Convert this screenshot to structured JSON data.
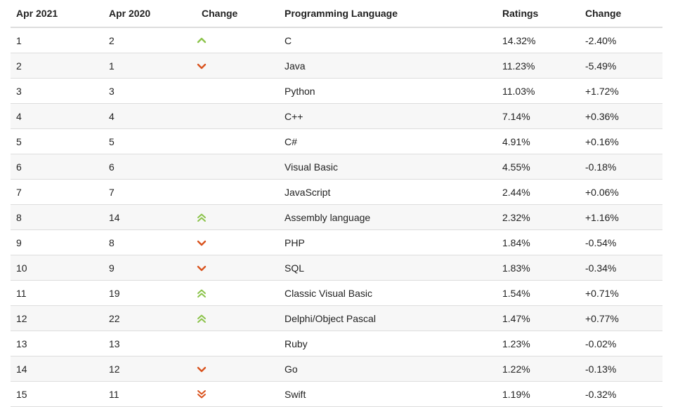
{
  "headers": [
    "Apr 2021",
    "Apr 2020",
    "Change",
    "Programming Language",
    "Ratings",
    "Change"
  ],
  "colors": {
    "up": "#8bc34a",
    "down": "#d9531e",
    "stripe": "#f7f7f7",
    "border": "#dddddd"
  },
  "rows": [
    {
      "rank2021": "1",
      "rank2020": "2",
      "trend": "up",
      "language": "C",
      "rating": "14.32%",
      "change": "-2.40%"
    },
    {
      "rank2021": "2",
      "rank2020": "1",
      "trend": "down",
      "language": "Java",
      "rating": "11.23%",
      "change": "-5.49%"
    },
    {
      "rank2021": "3",
      "rank2020": "3",
      "trend": "none",
      "language": "Python",
      "rating": "11.03%",
      "change": "+1.72%"
    },
    {
      "rank2021": "4",
      "rank2020": "4",
      "trend": "none",
      "language": "C++",
      "rating": "7.14%",
      "change": "+0.36%"
    },
    {
      "rank2021": "5",
      "rank2020": "5",
      "trend": "none",
      "language": "C#",
      "rating": "4.91%",
      "change": "+0.16%"
    },
    {
      "rank2021": "6",
      "rank2020": "6",
      "trend": "none",
      "language": "Visual Basic",
      "rating": "4.55%",
      "change": "-0.18%"
    },
    {
      "rank2021": "7",
      "rank2020": "7",
      "trend": "none",
      "language": "JavaScript",
      "rating": "2.44%",
      "change": "+0.06%"
    },
    {
      "rank2021": "8",
      "rank2020": "14",
      "trend": "double-up",
      "language": "Assembly language",
      "rating": "2.32%",
      "change": "+1.16%"
    },
    {
      "rank2021": "9",
      "rank2020": "8",
      "trend": "down",
      "language": "PHP",
      "rating": "1.84%",
      "change": "-0.54%"
    },
    {
      "rank2021": "10",
      "rank2020": "9",
      "trend": "down",
      "language": "SQL",
      "rating": "1.83%",
      "change": "-0.34%"
    },
    {
      "rank2021": "11",
      "rank2020": "19",
      "trend": "double-up",
      "language": "Classic Visual Basic",
      "rating": "1.54%",
      "change": "+0.71%"
    },
    {
      "rank2021": "12",
      "rank2020": "22",
      "trend": "double-up",
      "language": "Delphi/Object Pascal",
      "rating": "1.47%",
      "change": "+0.77%"
    },
    {
      "rank2021": "13",
      "rank2020": "13",
      "trend": "none",
      "language": "Ruby",
      "rating": "1.23%",
      "change": "-0.02%"
    },
    {
      "rank2021": "14",
      "rank2020": "12",
      "trend": "down",
      "language": "Go",
      "rating": "1.22%",
      "change": "-0.13%"
    },
    {
      "rank2021": "15",
      "rank2020": "11",
      "trend": "double-down",
      "language": "Swift",
      "rating": "1.19%",
      "change": "-0.32%"
    }
  ]
}
